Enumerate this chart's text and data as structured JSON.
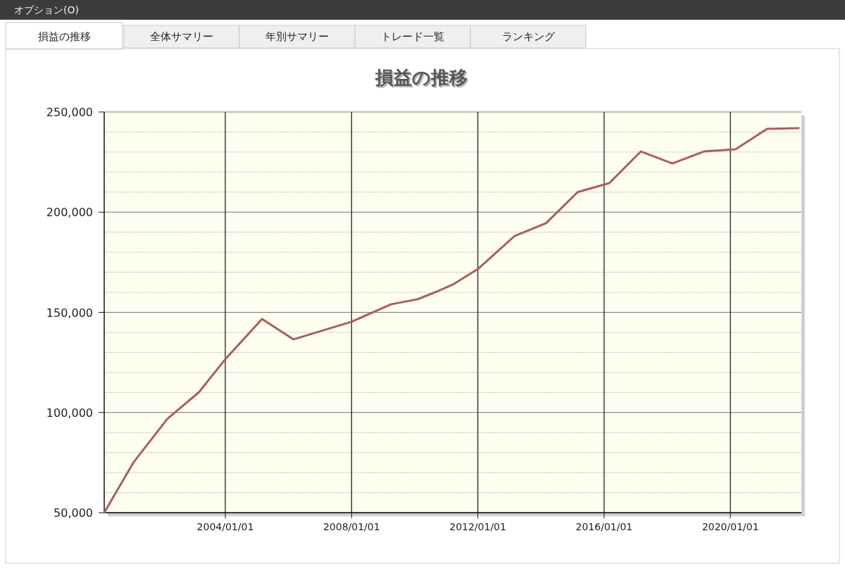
{
  "chart_data": {
    "type": "line",
    "title": "損益の推移",
    "annotations": [
      "オプション(O)",
      "損益の推移",
      "全体サマリー",
      "年別サマリー",
      "トレード一覧",
      "ランキング"
    ],
    "x": [
      "2000-03",
      "2001-02",
      "2002-03",
      "2003-03",
      "2004-01",
      "2005-03",
      "2006-03",
      "2008-01",
      "2009-04",
      "2010-02",
      "2010-10",
      "2011-04",
      "2012-01",
      "2013-03",
      "2014-03",
      "2014-07",
      "2015-03",
      "2016-03",
      "2017-03",
      "2018-03",
      "2019-03",
      "2020-03",
      "2021-03",
      "2022-03"
    ],
    "series": [
      {
        "color": "#a8605a",
        "values": [
          50000,
          75000,
          96800,
          110100,
          126600,
          146700,
          136500,
          145300,
          154000,
          156500,
          160700,
          164200,
          171600,
          188100,
          194500,
          199700,
          210000,
          214500,
          230300,
          224300,
          230300,
          231400,
          241600,
          241900
        ]
      }
    ],
    "xlim": [
      "2000-03",
      "2022-04"
    ],
    "xticks": [
      {
        "value": "2004-01-01",
        "label": "2004/01/01"
      },
      {
        "value": "2008-01-01",
        "label": "2008/01/01"
      },
      {
        "value": "2012-01-01",
        "label": "2012/01/01"
      },
      {
        "value": "2016-01-01",
        "label": "2016/01/01"
      },
      {
        "value": "2020-01-01",
        "label": "2020/01/01"
      }
    ],
    "ylim": [
      50000,
      250000
    ],
    "yticks": [
      {
        "value": 50000,
        "label": "50,000"
      },
      {
        "value": 100000,
        "label": "100,000"
      },
      {
        "value": 150000,
        "label": "150,000"
      },
      {
        "value": 200000,
        "label": "200,000"
      },
      {
        "value": 250000,
        "label": "250,000"
      }
    ],
    "grid": true,
    "marker": "none",
    "line_style": "solid"
  }
}
